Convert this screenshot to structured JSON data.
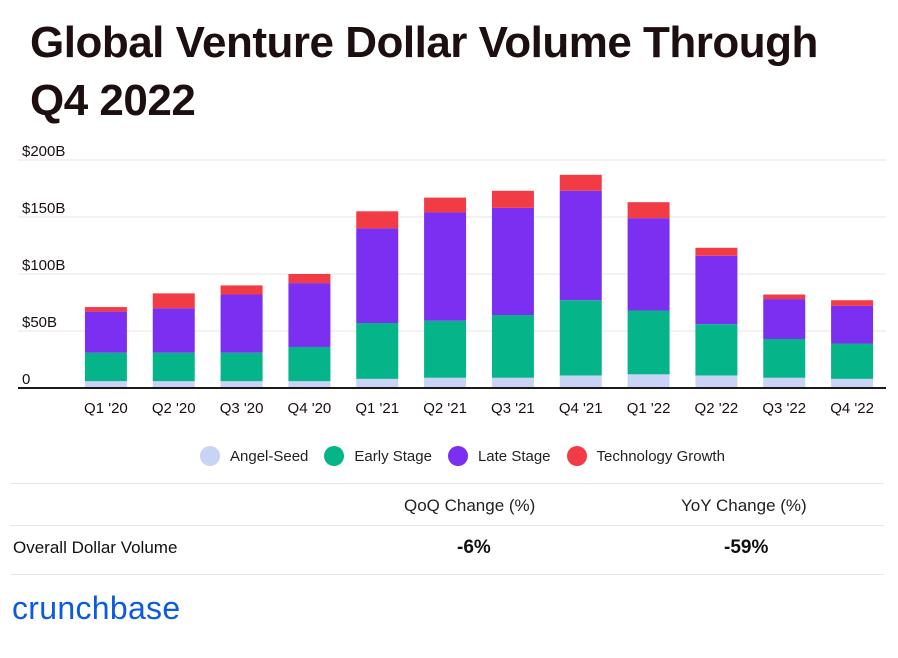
{
  "title": "Global Venture Dollar Volume Through Q4 2022",
  "chart_data": {
    "type": "bar",
    "stacked": true,
    "categories": [
      "Q1 '20",
      "Q2 '20",
      "Q3 '20",
      "Q4 '20",
      "Q1 '21",
      "Q2 '21",
      "Q3 '21",
      "Q4 '21",
      "Q1 '22",
      "Q2 '22",
      "Q3 '22",
      "Q4 '22"
    ],
    "y_ticks": [
      "$200B",
      "$150B",
      "$100B",
      "$50B",
      "0"
    ],
    "ylim": [
      0,
      200
    ],
    "grid": true,
    "legend_position": "bottom",
    "series": [
      {
        "name": "Angel-Seed",
        "color": "#c9d3f5",
        "values": [
          6,
          6,
          6,
          6,
          8,
          9,
          9,
          11,
          12,
          11,
          9,
          8
        ]
      },
      {
        "name": "Early Stage",
        "color": "#06b48a",
        "values": [
          25,
          25,
          25,
          30,
          49,
          50,
          55,
          66,
          56,
          45,
          34,
          31
        ]
      },
      {
        "name": "Late Stage",
        "color": "#7b2ff0",
        "values": [
          36,
          39,
          51,
          56,
          83,
          95,
          94,
          96,
          81,
          60,
          35,
          33
        ]
      },
      {
        "name": "Technology Growth",
        "color": "#f23c45",
        "values": [
          4,
          13,
          8,
          8,
          15,
          13,
          15,
          14,
          14,
          7,
          4,
          5
        ]
      }
    ]
  },
  "table": {
    "col1_header": "QoQ Change (%)",
    "col2_header": "YoY Change (%)",
    "row_label": "Overall Dollar Volume",
    "qoq": "-6%",
    "yoy": "-59%"
  },
  "logo_text": "crunchbase"
}
